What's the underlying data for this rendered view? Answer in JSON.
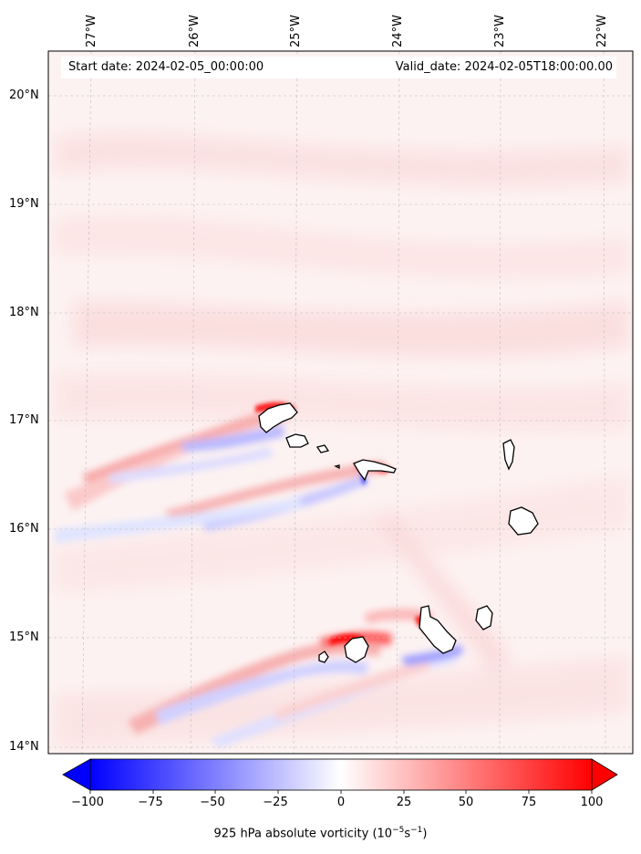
{
  "map": {
    "lon_labels": [
      "27°W",
      "26°W",
      "25°W",
      "24°W",
      "23°W",
      "22°W"
    ],
    "lat_labels": [
      "20°N",
      "19°N",
      "18°N",
      "17°N",
      "16°N",
      "15°N",
      "14°N"
    ],
    "start_date": "Start date: 2024-02-05_00:00:00",
    "valid_date": "Valid_date: 2024-02-05T18:00:00.00",
    "field": "925 hPa absolute vorticity",
    "region": "Cape Verde islands"
  },
  "colorbar": {
    "ticks": [
      "−100",
      "−75",
      "−50",
      "−25",
      "0",
      "25",
      "50",
      "75",
      "100"
    ],
    "label_text": "925 hPa absolute vorticity (10",
    "label_exp1": "−5",
    "label_mid": "s",
    "label_exp2": "−1",
    "label_end": ")",
    "colormap": "bwr",
    "min_color": "#0000ff",
    "mid_color": "#ffffff",
    "max_color": "#ff0000"
  }
}
